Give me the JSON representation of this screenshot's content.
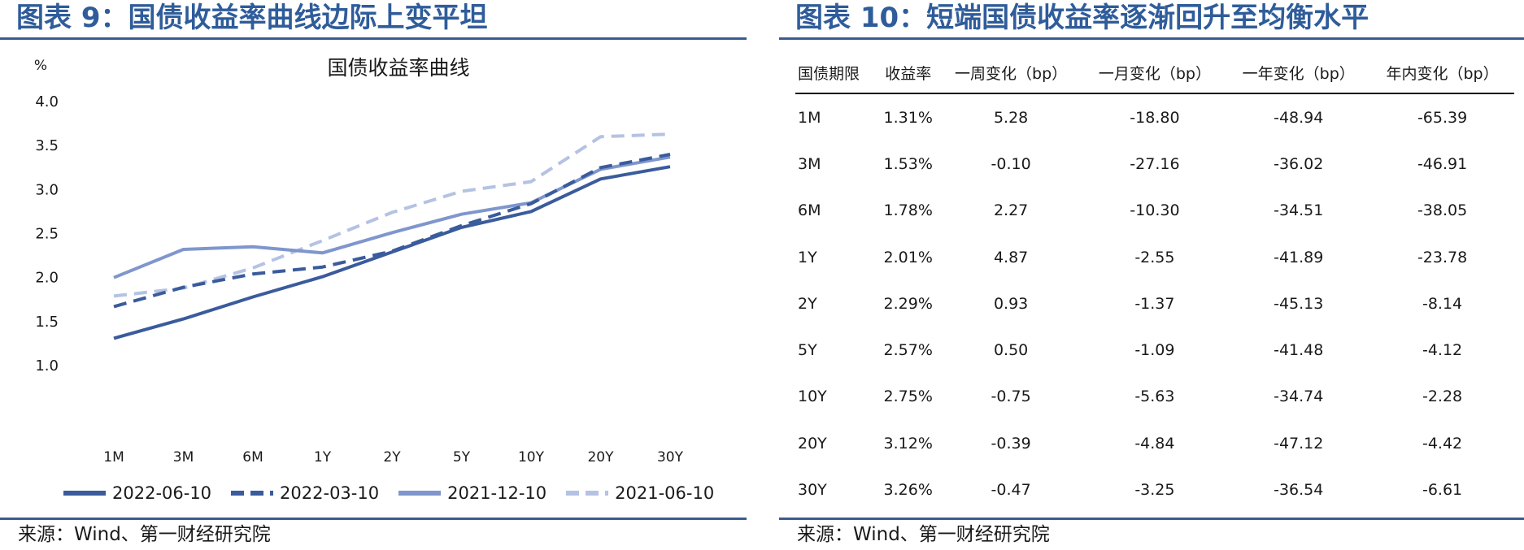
{
  "left": {
    "title": "图表 9：国债收益率曲线边际上变平坦",
    "source": "来源：Wind、第一财经研究院",
    "legend_colors": [
      "#3a5b9c",
      "#3a5b9c",
      "#7f96cd",
      "#b4c2e3"
    ],
    "legend_styles": [
      "solid",
      "dashed",
      "solid",
      "dashed"
    ]
  },
  "chart_data": {
    "type": "line",
    "title": "国债收益率曲线",
    "ylabel": "%",
    "xlabel": "",
    "categories": [
      "1M",
      "3M",
      "6M",
      "1Y",
      "2Y",
      "5Y",
      "10Y",
      "20Y",
      "30Y"
    ],
    "yticks": [
      "4.0",
      "3.5",
      "3.0",
      "2.5",
      "2.0",
      "1.5",
      "1.0"
    ],
    "ylim": [
      1.0,
      4.0
    ],
    "grid": false,
    "legend_position": "bottom",
    "series": [
      {
        "name": "2022-06-10",
        "values": [
          1.31,
          1.53,
          1.78,
          2.01,
          2.29,
          2.57,
          2.75,
          3.12,
          3.26
        ]
      },
      {
        "name": "2022-03-10",
        "values": [
          1.67,
          1.89,
          2.04,
          2.12,
          2.3,
          2.59,
          2.84,
          3.25,
          3.4
        ]
      },
      {
        "name": "2021-12-10",
        "values": [
          2.0,
          2.32,
          2.35,
          2.28,
          2.51,
          2.72,
          2.85,
          3.23,
          3.37
        ]
      },
      {
        "name": "2021-06-10",
        "values": [
          1.79,
          1.88,
          2.11,
          2.42,
          2.74,
          2.98,
          3.09,
          3.6,
          3.63
        ]
      }
    ]
  },
  "right": {
    "title": "图表 10：短端国债收益率逐渐回升至均衡水平",
    "source": "来源：Wind、第一财经研究院",
    "columns": [
      "国债期限",
      "收益率",
      "一周变化（bp）",
      "一月变化（bp）",
      "一年变化（bp）",
      "年内变化（bp）"
    ],
    "rows": [
      [
        "1M",
        "1.31%",
        "5.28",
        "-18.80",
        "-48.94",
        "-65.39"
      ],
      [
        "3M",
        "1.53%",
        "-0.10",
        "-27.16",
        "-36.02",
        "-46.91"
      ],
      [
        "6M",
        "1.78%",
        "2.27",
        "-10.30",
        "-34.51",
        "-38.05"
      ],
      [
        "1Y",
        "2.01%",
        "4.87",
        "-2.55",
        "-41.89",
        "-23.78"
      ],
      [
        "2Y",
        "2.29%",
        "0.93",
        "-1.37",
        "-45.13",
        "-8.14"
      ],
      [
        "5Y",
        "2.57%",
        "0.50",
        "-1.09",
        "-41.48",
        "-4.12"
      ],
      [
        "10Y",
        "2.75%",
        "-0.75",
        "-5.63",
        "-34.74",
        "-2.28"
      ],
      [
        "20Y",
        "3.12%",
        "-0.39",
        "-4.84",
        "-47.12",
        "-4.42"
      ],
      [
        "30Y",
        "3.26%",
        "-0.47",
        "-3.25",
        "-36.54",
        "-6.61"
      ]
    ]
  }
}
